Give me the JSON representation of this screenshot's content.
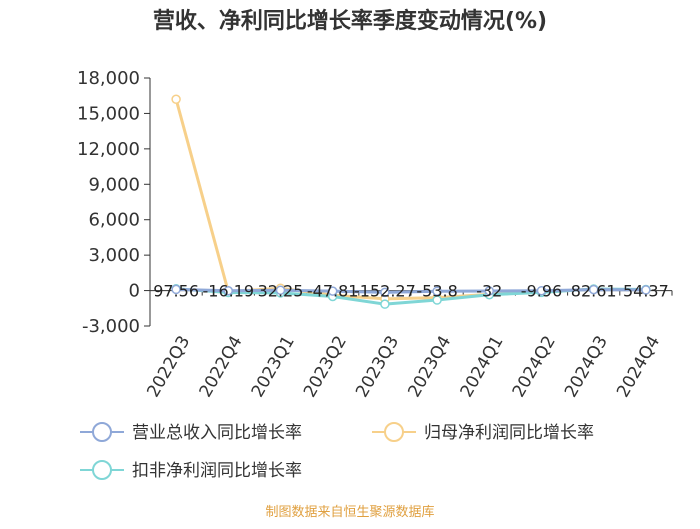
{
  "chart_data": {
    "type": "line",
    "title": "营收、净利同比增长率季度变动情况(%)",
    "categories": [
      "2022Q3",
      "2022Q4",
      "2023Q1",
      "2023Q2",
      "2023Q3",
      "2023Q4",
      "2024Q1",
      "2024Q2",
      "2024Q3",
      "2024Q4"
    ],
    "y_ticks": [
      "18,000",
      "15,000",
      "12,000",
      "9,000",
      "6,000",
      "3,000",
      "0",
      "-3,000"
    ],
    "ylim": [
      -3000,
      18000
    ],
    "series": [
      {
        "name": "营业总收入同比增长率",
        "color": "#8fa8d8",
        "values": [
          97.56,
          -16.19,
          32.25,
          -47.81,
          -152.27,
          -53.8,
          -32,
          -9.96,
          82.61,
          54.37
        ]
      },
      {
        "name": "归母净利润同比增长率",
        "color": "#f7d08a",
        "values": [
          16200,
          -100,
          200,
          -400,
          -700,
          -600,
          -320,
          -120,
          120,
          60
        ]
      },
      {
        "name": "扣非净利润同比增长率",
        "color": "#7fd6d6",
        "values": [
          150,
          -160,
          -200,
          -500,
          -1150,
          -800,
          -350,
          -150,
          130,
          90
        ]
      }
    ],
    "data_labels": [
      "97.56",
      "-16.19",
      "32.25",
      "-47.81",
      "-152.27",
      "-53.8",
      "-32",
      "-9.96",
      "82.61",
      "54.37"
    ],
    "grid": false,
    "legend_position": "bottom"
  },
  "source_text": "制图数据来自恒生聚源数据库"
}
